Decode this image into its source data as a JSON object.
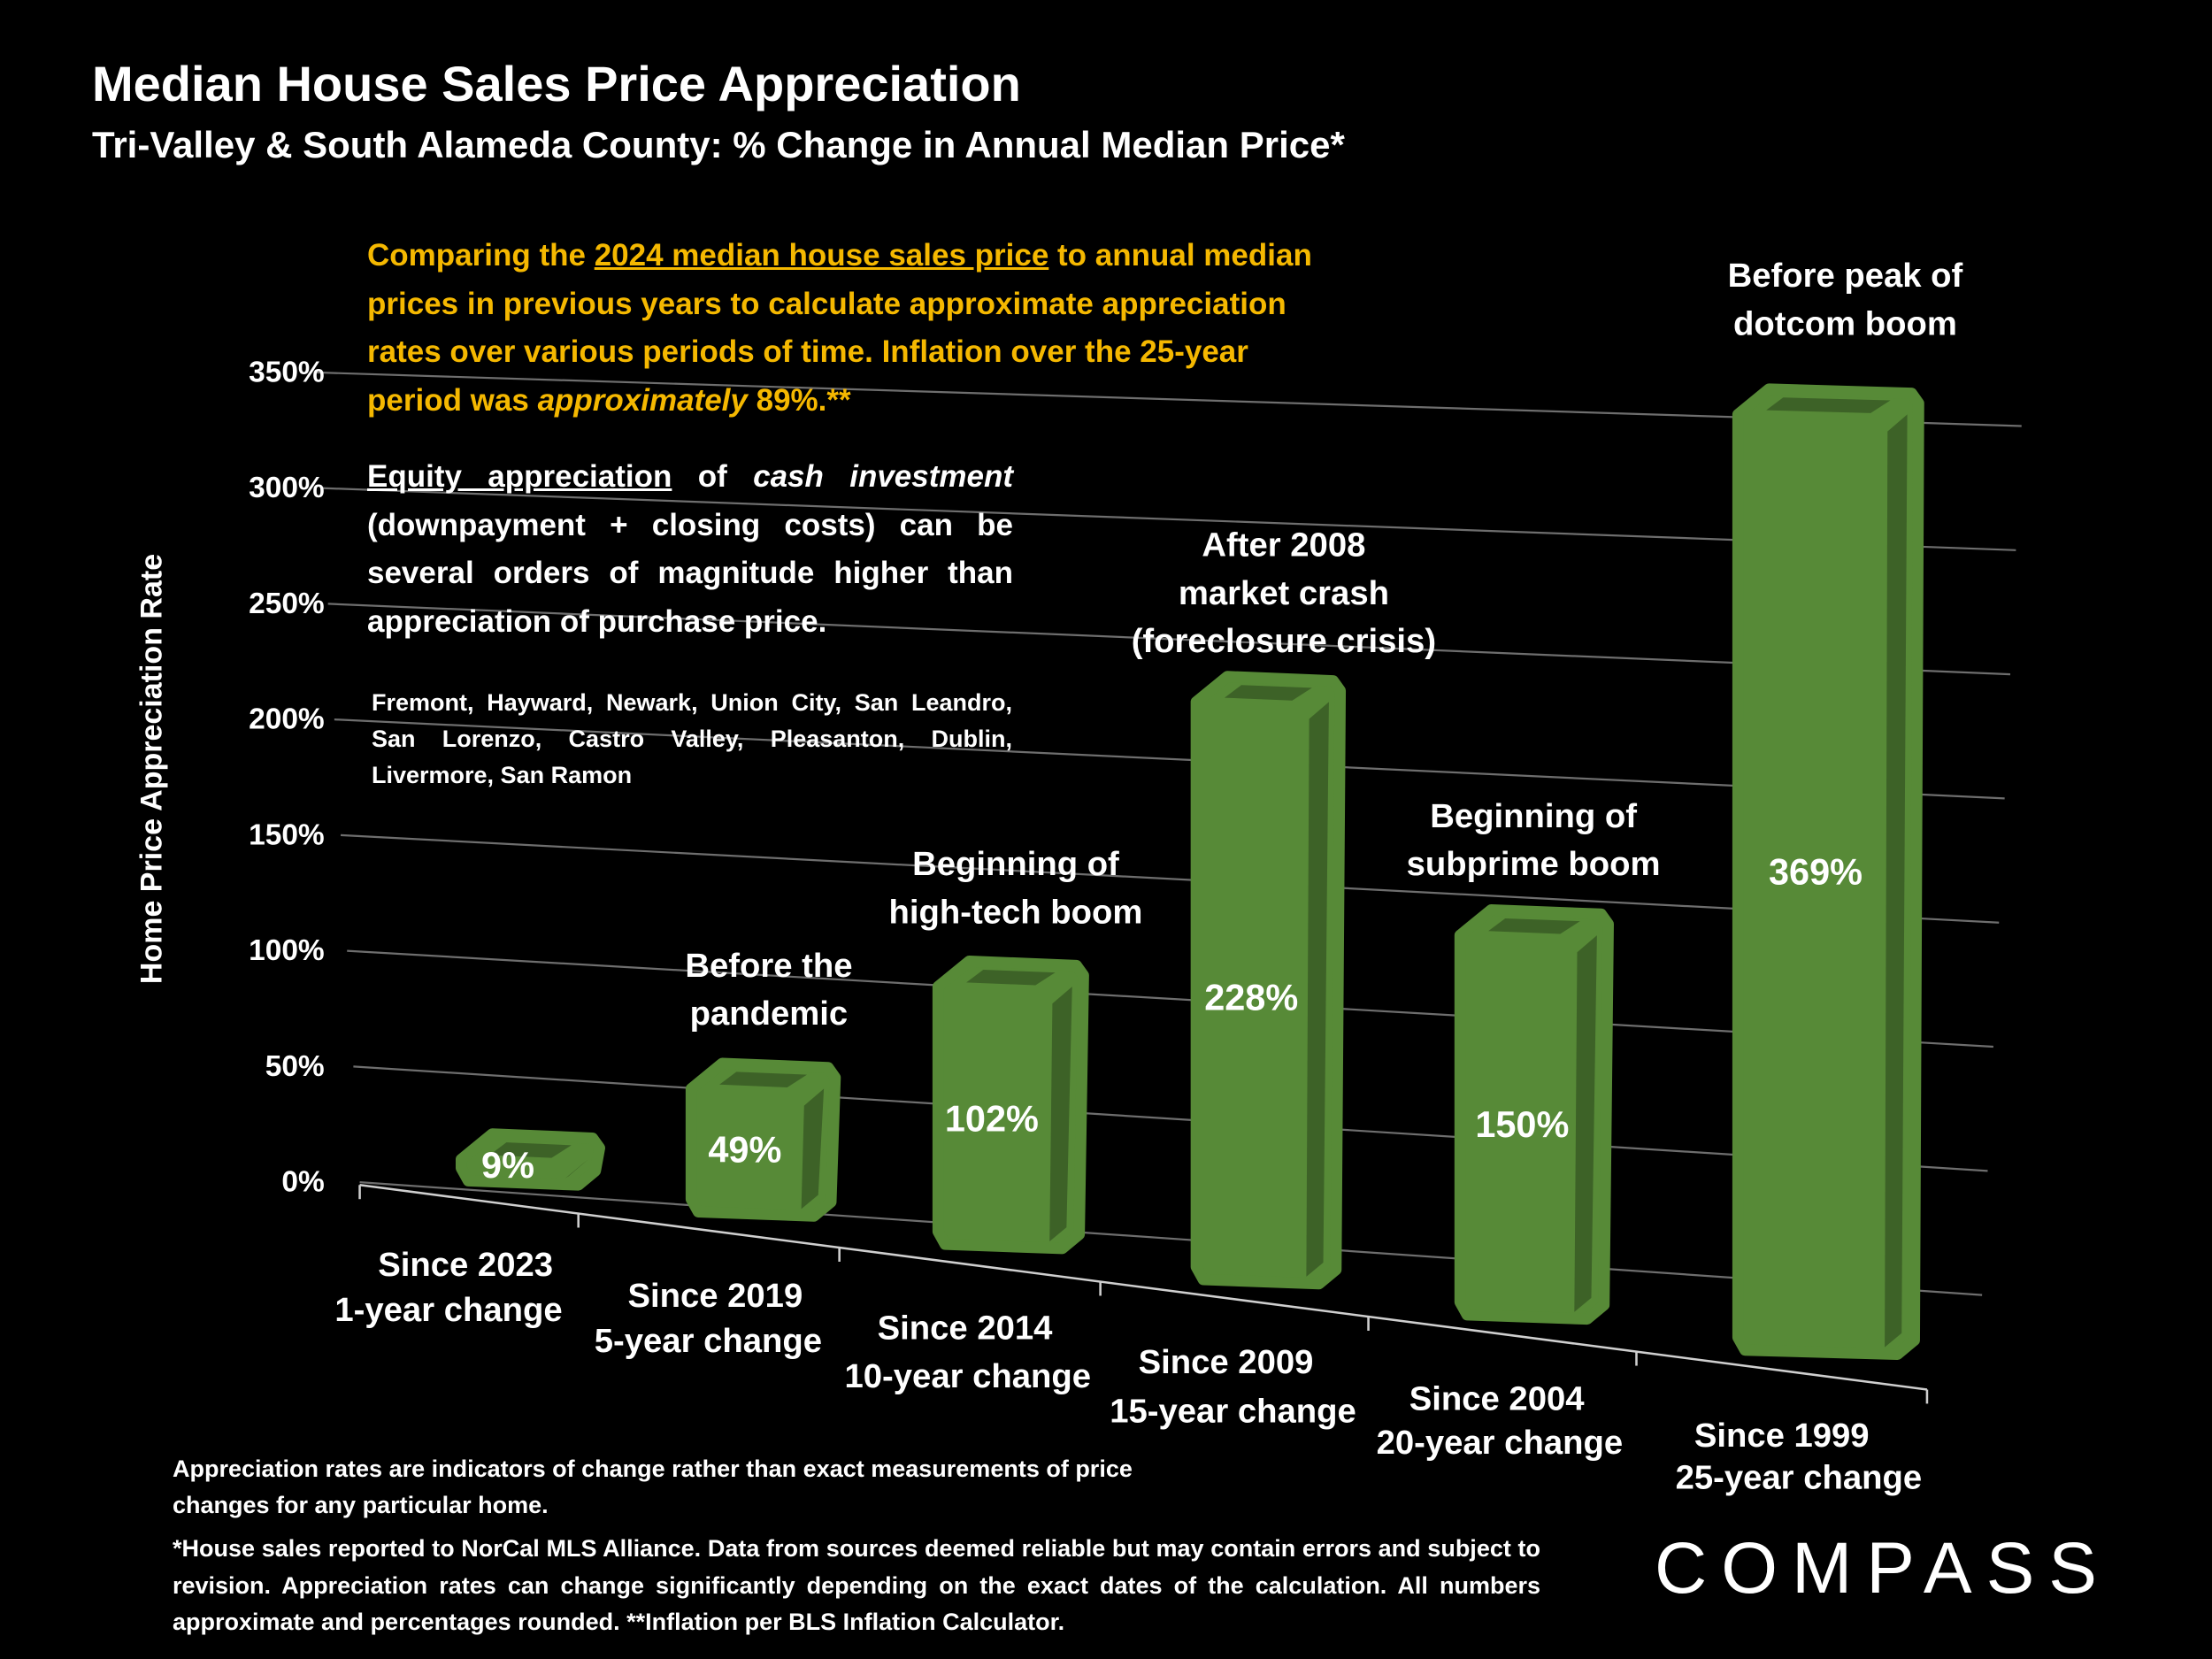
{
  "title": "Median House Sales Price Appreciation",
  "subtitle": "Tri-Valley & South Alameda County: % Change in Annual Median Price*",
  "intro": {
    "part1": "Comparing the ",
    "underlined": "2024 median house sales price",
    "part2": " to annual median prices in previous years to calculate approximate appreciation rates over various periods of time. Inflation over the 25-year period was ",
    "italic": "approximately",
    "part3": " 89%.**"
  },
  "equity": {
    "underlined": "Equity appreciation",
    "part1": " of ",
    "italic": "cash investment",
    "part2": " (downpayment + closing costs) can be several orders of magnitude higher than appreciation of purchase price."
  },
  "cities": "Fremont, Hayward, Newark, Union City, San Leandro, San Lorenzo, Castro Valley, Pleasanton, Dublin, Livermore, San Ramon",
  "footnote1": "Appreciation rates are indicators of change rather than exact measurements of price changes for any particular home.",
  "footnote2": "*House sales reported to NorCal MLS Alliance. Data from sources deemed reliable but may contain errors and subject to revision. Appreciation rates can change significantly depending on the exact dates of the calculation. All numbers  approximate and percentages rounded. **Inflation per BLS Inflation Calculator.",
  "logo": "COMPASS",
  "colors": {
    "bar": "#578a37",
    "bar_dark": "#3d6227",
    "intro_text": "#f5b800",
    "grid": "#6e6e6e"
  },
  "chart_data": {
    "type": "bar",
    "title": "Median House Sales Price Appreciation",
    "ylabel": "Home Price Appreciation Rate",
    "xlabel": "",
    "ylim": [
      0,
      350
    ],
    "yticks": [
      0,
      50,
      100,
      150,
      200,
      250,
      300,
      350
    ],
    "ytick_labels": [
      "0%",
      "50%",
      "100%",
      "150%",
      "200%",
      "250%",
      "300%",
      "350%"
    ],
    "grid": true,
    "categories": [
      [
        "Since 2023",
        "1-year change"
      ],
      [
        "Since 2019",
        "5-year change"
      ],
      [
        "Since 2014",
        "10-year change"
      ],
      [
        "Since 2009",
        "15-year change"
      ],
      [
        "Since 2004",
        "20-year change"
      ],
      [
        "Since 1999",
        "25-year change"
      ]
    ],
    "values": [
      9,
      49,
      102,
      228,
      150,
      369
    ],
    "data_labels": [
      "9%",
      "49%",
      "102%",
      "228%",
      "150%",
      "369%"
    ],
    "annotations": [
      [],
      [
        "Before the",
        "pandemic"
      ],
      [
        "Beginning of",
        "high-tech boom"
      ],
      [
        "After 2008",
        "market crash",
        "(foreclosure crisis)"
      ],
      [
        "Beginning of",
        "subprime boom"
      ],
      [
        "Before peak of",
        "dotcom boom"
      ]
    ]
  }
}
